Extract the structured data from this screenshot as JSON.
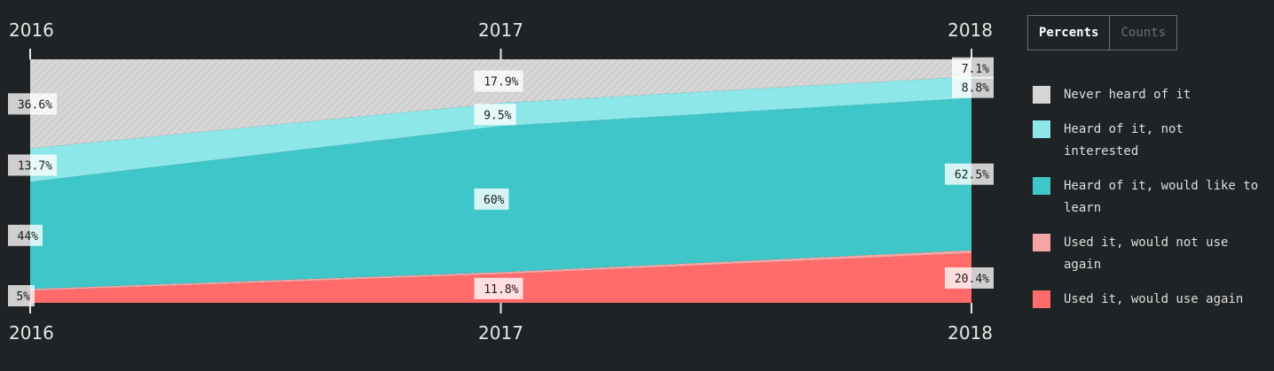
{
  "toggle": {
    "percents_label": "Percents",
    "counts_label": "Counts"
  },
  "legend": [
    {
      "label": "Never heard of it",
      "color": "#d6d6d6"
    },
    {
      "label": "Heard of it, not interested",
      "color": "#8de6e8"
    },
    {
      "label": "Heard of it, would like to learn",
      "color": "#3fc6c9"
    },
    {
      "label": "Used it, would not use again",
      "color": "#f6a5a5"
    },
    {
      "label": "Used it, would use again",
      "color": "#ff6b6b"
    }
  ],
  "chart_data": {
    "type": "area",
    "stacked": true,
    "normalized": true,
    "x": [
      "2016",
      "2017",
      "2018"
    ],
    "ylim": [
      0,
      100
    ],
    "series": [
      {
        "name": "Used it, would use again",
        "color": "#ff6b6b",
        "values": [
          5,
          11.8,
          20.4
        ],
        "labels": [
          "5%",
          "11.8%",
          "20.4%"
        ]
      },
      {
        "name": "Used it, would not use again",
        "color": "#f6a5a5",
        "values": [
          0.7,
          0.8,
          1.2
        ],
        "labels": [
          "",
          "",
          ""
        ]
      },
      {
        "name": "Heard of it, would like to learn",
        "color": "#3fc6c9",
        "values": [
          44,
          60,
          62.5
        ],
        "labels": [
          "44%",
          "60%",
          "62.5%"
        ]
      },
      {
        "name": "Heard of it, not interested",
        "color": "#8de6e8",
        "values": [
          13.7,
          9.5,
          8.8
        ],
        "labels": [
          "13.7%",
          "9.5%",
          "8.8%"
        ]
      },
      {
        "name": "Never heard of it",
        "color": "#d6d6d6",
        "values": [
          36.6,
          17.9,
          7.1
        ],
        "labels": [
          "36.6%",
          "17.9%",
          "7.1%"
        ]
      }
    ]
  }
}
